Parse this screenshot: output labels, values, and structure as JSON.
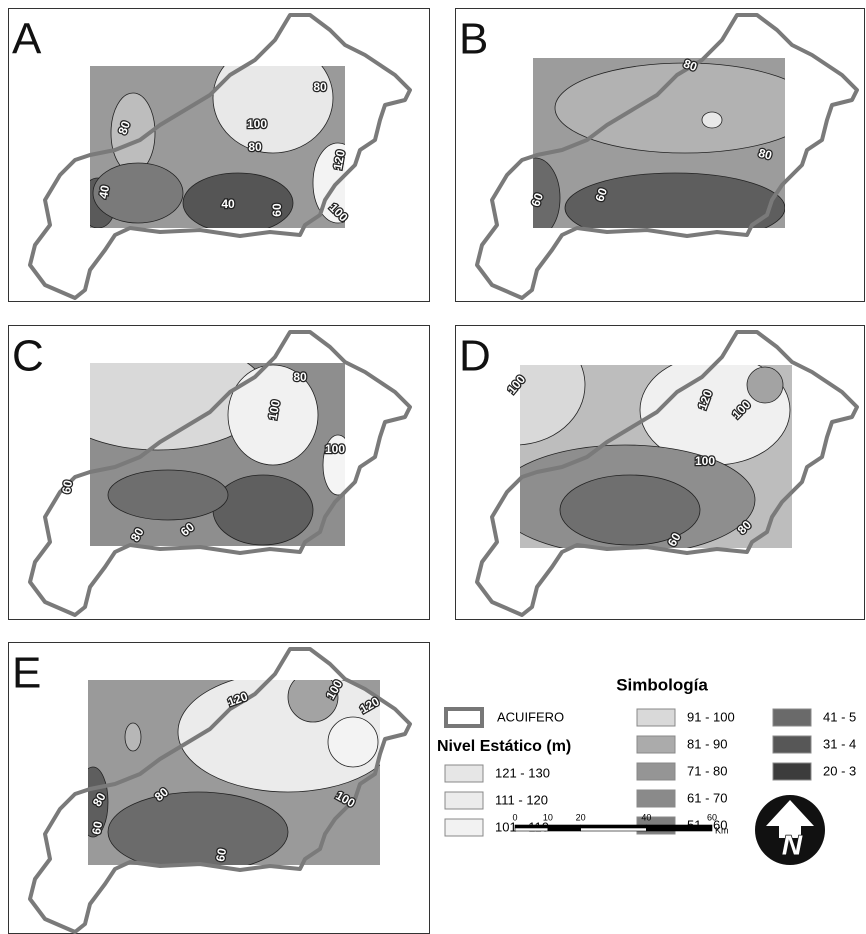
{
  "panels": [
    {
      "letter": "A",
      "contour_labels": [
        80,
        80,
        100,
        80,
        120,
        40,
        40,
        60,
        100
      ]
    },
    {
      "letter": "B",
      "contour_labels": [
        80,
        80,
        60,
        60
      ]
    },
    {
      "letter": "C",
      "contour_labels": [
        80,
        100,
        100,
        60,
        80,
        60
      ]
    },
    {
      "letter": "D",
      "contour_labels": [
        100,
        120,
        100,
        100,
        60,
        80
      ]
    },
    {
      "letter": "E",
      "contour_labels": [
        100,
        120,
        120,
        80,
        80,
        60,
        60,
        100
      ]
    }
  ],
  "legend": {
    "title": "Simbología",
    "boundary": "ACUIFERO",
    "subtitle": "Nivel Estático (m)",
    "classes": [
      {
        "label": "121 - 130",
        "color": "#e6e6e6"
      },
      {
        "label": "111 - 120",
        "color": "#ececec"
      },
      {
        "label": "101 - 110",
        "color": "#f2f2f2"
      },
      {
        "label": "91 - 100",
        "color": "#d9d9d9"
      },
      {
        "label": "81 - 90",
        "color": "#ababab"
      },
      {
        "label": "71 - 80",
        "color": "#959595"
      },
      {
        "label": "61 - 70",
        "color": "#8a8a8a"
      },
      {
        "label": "51 - 60",
        "color": "#7e7e7e"
      },
      {
        "label": "41 - 5",
        "color": "#6a6a6a"
      },
      {
        "label": "31 - 4",
        "color": "#575757"
      },
      {
        "label": "20 - 3",
        "color": "#3c3c3c"
      }
    ]
  },
  "scale_bar": {
    "ticks": [
      0,
      10,
      20,
      40,
      60
    ],
    "unit": "Km"
  },
  "north_arrow": "N"
}
